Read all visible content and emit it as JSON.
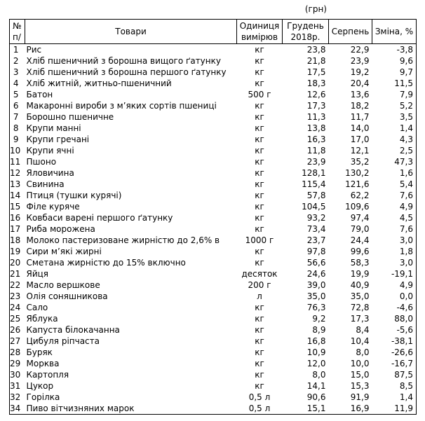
{
  "currency_note": "(грн)",
  "table": {
    "header": {
      "num": [
        "№",
        "п/"
      ],
      "goods": "Товари",
      "unit": [
        "Одиниця",
        "вимірюв"
      ],
      "december": [
        "Грудень",
        "2018р."
      ],
      "august": "Серпень",
      "change": "Зміна, %"
    },
    "rows": [
      {
        "n": "1",
        "item": "Рис",
        "unit": "кг",
        "dec": "23,8",
        "aug": "22,9",
        "chg": "-3,8"
      },
      {
        "n": "2",
        "item": "Хліб пшеничний з борошна вищого ґатунку",
        "unit": "кг",
        "dec": "21,8",
        "aug": "23,9",
        "chg": "9,6"
      },
      {
        "n": "3",
        "item": "Хліб пшеничний з борошна першого ґатунку",
        "unit": "кг",
        "dec": "17,5",
        "aug": "19,2",
        "chg": "9,7"
      },
      {
        "n": "4",
        "item": "Хліб житній, житньо-пшеничний",
        "unit": "кг",
        "dec": "18,3",
        "aug": "20,4",
        "chg": "11,5"
      },
      {
        "n": "5",
        "item": "Батон",
        "unit": "500 г",
        "dec": "12,6",
        "aug": "13,6",
        "chg": "7,9"
      },
      {
        "n": "6",
        "item": "Макаронні вироби з м’яких сортів пшениці",
        "unit": "кг",
        "dec": "17,3",
        "aug": "18,2",
        "chg": "5,2"
      },
      {
        "n": "7",
        "item": "Борошно пшеничне",
        "unit": "кг",
        "dec": "11,3",
        "aug": "11,7",
        "chg": "3,5"
      },
      {
        "n": "8",
        "item": "Крупи манні",
        "unit": "кг",
        "dec": "13,8",
        "aug": "14,0",
        "chg": "1,4"
      },
      {
        "n": "9",
        "item": "Крупи гречані",
        "unit": "кг",
        "dec": "16,3",
        "aug": "17,0",
        "chg": "4,3"
      },
      {
        "n": "10",
        "item": "Крупи ячні",
        "unit": "кг",
        "dec": "11,8",
        "aug": "12,1",
        "chg": "2,5"
      },
      {
        "n": "11",
        "item": "Пшоно",
        "unit": "кг",
        "dec": "23,9",
        "aug": "35,2",
        "chg": "47,3"
      },
      {
        "n": "12",
        "item": "Яловичина",
        "unit": "кг",
        "dec": "128,1",
        "aug": "130,2",
        "chg": "1,6"
      },
      {
        "n": "13",
        "item": "Свинина",
        "unit": "кг",
        "dec": "115,4",
        "aug": "121,6",
        "chg": "5,4"
      },
      {
        "n": "14",
        "item": "Птиця (тушки курячі)",
        "unit": "кг",
        "dec": "57,8",
        "aug": "62,2",
        "chg": "7,6"
      },
      {
        "n": "15",
        "item": "Філе куряче",
        "unit": "кг",
        "dec": "104,5",
        "aug": "109,6",
        "chg": "4,9"
      },
      {
        "n": "16",
        "item": "Ковбаси варені першого ґатунку",
        "unit": "кг",
        "dec": "93,2",
        "aug": "97,4",
        "chg": "4,5"
      },
      {
        "n": "17",
        "item": "Риба морожена",
        "unit": "кг",
        "dec": "73,4",
        "aug": "79,0",
        "chg": "7,6"
      },
      {
        "n": "18",
        "item": "Молоко пастеризоване жирністю до 2,6% в",
        "unit": "1000 г",
        "dec": "23,7",
        "aug": "24,4",
        "chg": "3,0"
      },
      {
        "n": "19",
        "item": "Сири м’які жирні",
        "unit": "кг",
        "dec": "97,8",
        "aug": "99,6",
        "chg": "1,8"
      },
      {
        "n": "20",
        "item": "Сметана жирністю до 15% включно",
        "unit": "кг",
        "dec": "56,6",
        "aug": "58,3",
        "chg": "3,0"
      },
      {
        "n": "21",
        "item": "Яйця",
        "unit": "десяток",
        "dec": "24,6",
        "aug": "19,9",
        "chg": "-19,1"
      },
      {
        "n": "22",
        "item": "Масло вершкове",
        "unit": "200 г",
        "dec": "39,0",
        "aug": "40,9",
        "chg": "4,9"
      },
      {
        "n": "23",
        "item": "Олія соняшникова",
        "unit": "л",
        "dec": "35,0",
        "aug": "35,0",
        "chg": "0,0"
      },
      {
        "n": "24",
        "item": "Сало",
        "unit": "кг",
        "dec": "76,3",
        "aug": "72,8",
        "chg": "-4,6"
      },
      {
        "n": "25",
        "item": "Яблука",
        "unit": "кг",
        "dec": "9,2",
        "aug": "17,3",
        "chg": "88,0"
      },
      {
        "n": "26",
        "item": "Капуста білокачанна",
        "unit": "кг",
        "dec": "8,9",
        "aug": "8,4",
        "chg": "-5,6"
      },
      {
        "n": "27",
        "item": "Цибуля ріпчаста",
        "unit": "кг",
        "dec": "16,8",
        "aug": "10,4",
        "chg": "-38,1"
      },
      {
        "n": "28",
        "item": "Буряк",
        "unit": "кг",
        "dec": "10,9",
        "aug": "8,0",
        "chg": "-26,6"
      },
      {
        "n": "29",
        "item": "Морква",
        "unit": "кг",
        "dec": "12,0",
        "aug": "10,0",
        "chg": "-16,7"
      },
      {
        "n": "30",
        "item": "Картопля",
        "unit": "кг",
        "dec": "8,0",
        "aug": "15,0",
        "chg": "87,5"
      },
      {
        "n": "31",
        "item": "Цукор",
        "unit": "кг",
        "dec": "14,1",
        "aug": "15,3",
        "chg": "8,5"
      },
      {
        "n": "32",
        "item": "Горілка",
        "unit": "0,5 л",
        "dec": "90,6",
        "aug": "91,9",
        "chg": "1,4"
      },
      {
        "n": "34",
        "item": "Пиво вітчизняних марок",
        "unit": "0,5 л",
        "dec": "15,1",
        "aug": "16,9",
        "chg": "11,9"
      }
    ]
  }
}
